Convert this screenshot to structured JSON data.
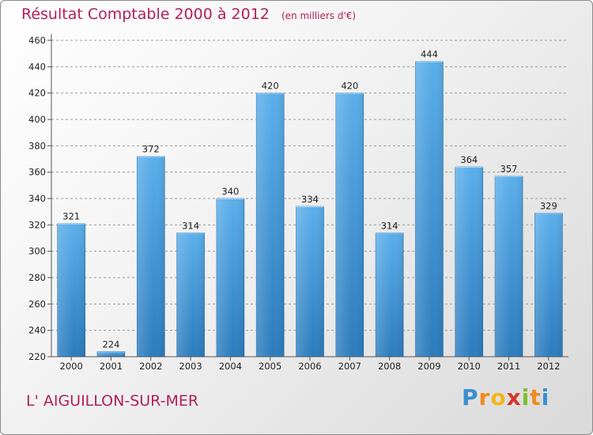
{
  "header": {
    "title": "Résultat Comptable 2000 à 2012",
    "subtitle": "(en milliers d'€)"
  },
  "footer": {
    "location": "L' AIGUILLON-SUR-MER",
    "logo": "Proxiti",
    "logo_letters": [
      "P",
      "r",
      "o",
      "x",
      "i",
      "t",
      "i"
    ]
  },
  "chart_data": {
    "type": "bar",
    "title": "Résultat Comptable 2000 à 2012",
    "subtitle": "(en milliers d'€)",
    "xlabel": "",
    "ylabel": "",
    "categories": [
      "2000",
      "2001",
      "2002",
      "2003",
      "2004",
      "2005",
      "2006",
      "2007",
      "2008",
      "2009",
      "2010",
      "2011",
      "2012"
    ],
    "values": [
      321,
      224,
      372,
      314,
      340,
      420,
      334,
      420,
      314,
      444,
      364,
      357,
      329
    ],
    "ylim": [
      220,
      460
    ],
    "yticks": [
      220,
      240,
      260,
      280,
      300,
      320,
      340,
      360,
      380,
      400,
      420,
      440,
      460
    ],
    "grid": true,
    "colors": {
      "bar_top": "#5aaeea",
      "bar_bottom": "#2b7bbd",
      "grid": "#9a9a9a",
      "title": "#b01f5c"
    }
  }
}
